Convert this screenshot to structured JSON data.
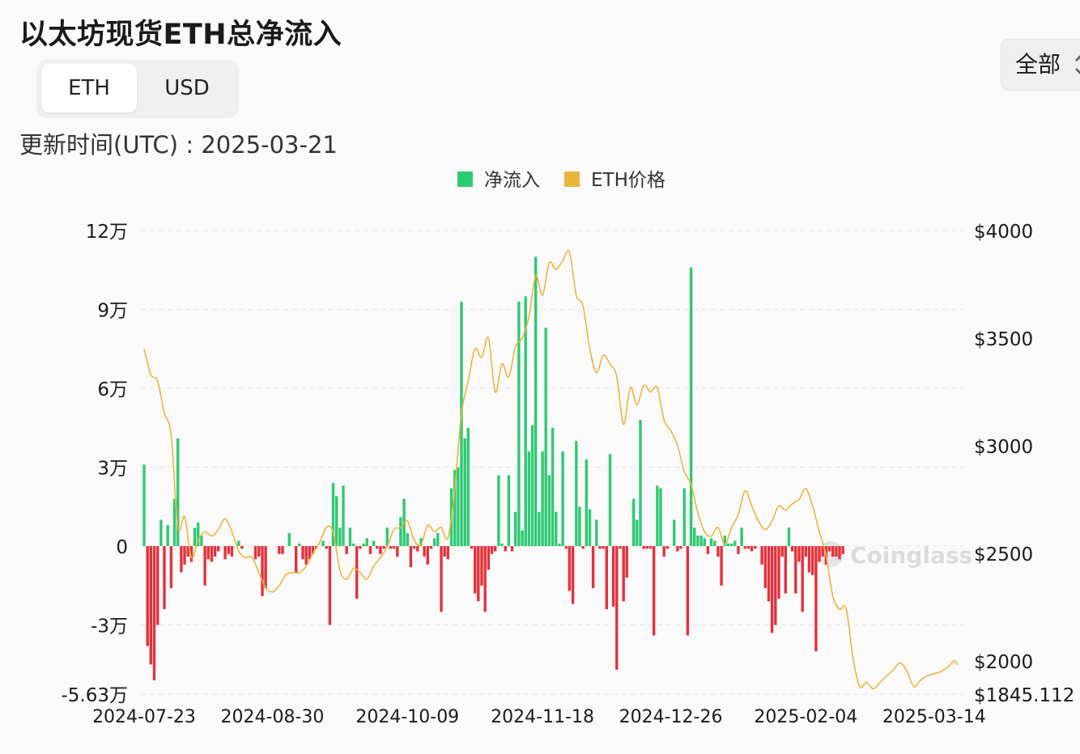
{
  "title": "以太坊现货ETH总净流入",
  "unit_toggle": {
    "options": [
      "ETH",
      "USD"
    ],
    "selected": "ETH"
  },
  "range_select": {
    "value": "全部",
    "chevron": "⌃⌄"
  },
  "updated": "更新时间(UTC) : 2025-03-21",
  "watermark": "Coinglass",
  "colors": {
    "inflow": "#2ec973",
    "outflow": "#e5313b",
    "price": "#ebb53c",
    "grid": "#e6e6e6"
  },
  "chart_data": {
    "type": "bar+line",
    "legend": [
      {
        "label": "净流入",
        "color": "#2ec973"
      },
      {
        "label": "ETH价格",
        "color": "#ebb53c"
      }
    ],
    "left_axis": {
      "ticks": [
        120000,
        90000,
        60000,
        30000,
        0,
        -30000,
        -56300
      ],
      "tick_labels": [
        "12万",
        "9万",
        "6万",
        "3万",
        "0",
        "-3万",
        "-5.63万"
      ],
      "range": [
        -56300,
        120000
      ]
    },
    "right_axis": {
      "ticks": [
        4000,
        3500,
        3000,
        2500,
        2000,
        1845.112
      ],
      "tick_labels": [
        "$4000",
        "$3500",
        "$3000",
        "$2500",
        "$2000",
        "$1845.112"
      ],
      "range": [
        1845.112,
        4000
      ]
    },
    "x_labels": [
      "2024-07-23",
      "2024-08-30",
      "2024-10-09",
      "2024-11-18",
      "2024-12-26",
      "2025-02-04",
      "2025-03-14"
    ],
    "x_label_indices": [
      0,
      38,
      78,
      118,
      156,
      196,
      234
    ],
    "num_days": 242,
    "net_flow": [
      [
        0,
        31000
      ],
      [
        1,
        -38000
      ],
      [
        2,
        -45000
      ],
      [
        3,
        -51000
      ],
      [
        4,
        -30000
      ],
      [
        5,
        10000
      ],
      [
        6,
        -24000
      ],
      [
        7,
        8000
      ],
      [
        8,
        -16000
      ],
      [
        9,
        18000
      ],
      [
        10,
        41000
      ],
      [
        11,
        -10000
      ],
      [
        12,
        -7000
      ],
      [
        13,
        -4000
      ],
      [
        14,
        -6000
      ],
      [
        15,
        7000
      ],
      [
        16,
        9000
      ],
      [
        17,
        4000
      ],
      [
        18,
        -15000
      ],
      [
        19,
        -5000
      ],
      [
        20,
        -6000
      ],
      [
        21,
        -4000
      ],
      [
        22,
        -2000
      ],
      [
        24,
        -5000
      ],
      [
        25,
        -3000
      ],
      [
        26,
        -4000
      ],
      [
        28,
        2000
      ],
      [
        29,
        -1000
      ],
      [
        33,
        -5000
      ],
      [
        34,
        -4000
      ],
      [
        35,
        -19000
      ],
      [
        36,
        -16000
      ],
      [
        40,
        -3000
      ],
      [
        41,
        -3000
      ],
      [
        43,
        5000
      ],
      [
        45,
        -10000
      ],
      [
        46,
        1000
      ],
      [
        47,
        -5000
      ],
      [
        48,
        -7000
      ],
      [
        49,
        -5000
      ],
      [
        50,
        -3000
      ],
      [
        51,
        -1000
      ],
      [
        53,
        2000
      ],
      [
        54,
        -1000
      ],
      [
        55,
        -30000
      ],
      [
        56,
        24000
      ],
      [
        57,
        19000
      ],
      [
        58,
        7000
      ],
      [
        59,
        23000
      ],
      [
        60,
        -3000
      ],
      [
        61,
        7000
      ],
      [
        62,
        1000
      ],
      [
        63,
        -20000
      ],
      [
        64,
        -1000
      ],
      [
        65,
        1000
      ],
      [
        66,
        3000
      ],
      [
        67,
        -3000
      ],
      [
        68,
        2000
      ],
      [
        69,
        -1000
      ],
      [
        70,
        -3000
      ],
      [
        71,
        -1000
      ],
      [
        72,
        7000
      ],
      [
        73,
        -1000
      ],
      [
        74,
        -1000
      ],
      [
        75,
        -4000
      ],
      [
        76,
        11000
      ],
      [
        77,
        18000
      ],
      [
        78,
        5000
      ],
      [
        79,
        -8000
      ],
      [
        80,
        -1000
      ],
      [
        81,
        -2000
      ],
      [
        82,
        3000
      ],
      [
        83,
        -4000
      ],
      [
        84,
        -7000
      ],
      [
        85,
        -1000
      ],
      [
        86,
        3000
      ],
      [
        87,
        5000
      ],
      [
        88,
        -25000
      ],
      [
        89,
        -4000
      ],
      [
        90,
        -5000
      ],
      [
        91,
        22000
      ],
      [
        92,
        29000
      ],
      [
        93,
        30000
      ],
      [
        94,
        93000
      ],
      [
        95,
        41000
      ],
      [
        96,
        45000
      ],
      [
        97,
        -1000
      ],
      [
        98,
        -18000
      ],
      [
        99,
        -21000
      ],
      [
        100,
        -15000
      ],
      [
        101,
        -25000
      ],
      [
        102,
        -9000
      ],
      [
        103,
        -3000
      ],
      [
        104,
        -2000
      ],
      [
        105,
        27000
      ],
      [
        106,
        1000
      ],
      [
        107,
        -2000
      ],
      [
        108,
        27000
      ],
      [
        109,
        -2000
      ],
      [
        110,
        13000
      ],
      [
        111,
        93000
      ],
      [
        112,
        6000
      ],
      [
        113,
        95000
      ],
      [
        114,
        36000
      ],
      [
        115,
        46000
      ],
      [
        116,
        110000
      ],
      [
        117,
        13000
      ],
      [
        118,
        36000
      ],
      [
        119,
        83000
      ],
      [
        120,
        27000
      ],
      [
        121,
        45000
      ],
      [
        122,
        13000
      ],
      [
        123,
        1000
      ],
      [
        124,
        36000
      ],
      [
        125,
        -1000
      ],
      [
        126,
        -17000
      ],
      [
        127,
        -22000
      ],
      [
        128,
        40000
      ],
      [
        129,
        15000
      ],
      [
        130,
        -1000
      ],
      [
        131,
        33000
      ],
      [
        132,
        14000
      ],
      [
        133,
        -16000
      ],
      [
        134,
        10000
      ],
      [
        135,
        -1000
      ],
      [
        136,
        -1000
      ],
      [
        137,
        -24000
      ],
      [
        138,
        35000
      ],
      [
        139,
        -23000
      ],
      [
        140,
        -47000
      ],
      [
        141,
        -1000
      ],
      [
        142,
        -21000
      ],
      [
        143,
        -12000
      ],
      [
        145,
        18000
      ],
      [
        146,
        10000
      ],
      [
        147,
        48000
      ],
      [
        148,
        -1000
      ],
      [
        149,
        -1000
      ],
      [
        150,
        -1000
      ],
      [
        151,
        -34000
      ],
      [
        152,
        23000
      ],
      [
        153,
        22000
      ],
      [
        154,
        -4000
      ],
      [
        155,
        -1000
      ],
      [
        157,
        10000
      ],
      [
        158,
        -2000
      ],
      [
        159,
        -1000
      ],
      [
        160,
        22000
      ],
      [
        161,
        -34000
      ],
      [
        162,
        106000
      ],
      [
        163,
        7000
      ],
      [
        164,
        4000
      ],
      [
        165,
        4000
      ],
      [
        166,
        3000
      ],
      [
        167,
        -3000
      ],
      [
        168,
        3000
      ],
      [
        169,
        2000
      ],
      [
        170,
        -4000
      ],
      [
        171,
        -15000
      ],
      [
        172,
        4000
      ],
      [
        173,
        1000
      ],
      [
        174,
        1000
      ],
      [
        175,
        2000
      ],
      [
        176,
        -3000
      ],
      [
        177,
        7000
      ],
      [
        178,
        -1000
      ],
      [
        179,
        -1000
      ],
      [
        180,
        -2000
      ],
      [
        181,
        -1000
      ],
      [
        183,
        -7000
      ],
      [
        184,
        -16000
      ],
      [
        185,
        -21000
      ],
      [
        186,
        -33000
      ],
      [
        187,
        -30000
      ],
      [
        188,
        -20000
      ],
      [
        189,
        -4000
      ],
      [
        190,
        -18000
      ],
      [
        191,
        7000
      ],
      [
        192,
        -2000
      ],
      [
        193,
        -18000
      ],
      [
        194,
        -6000
      ],
      [
        195,
        -25000
      ],
      [
        196,
        -4000
      ],
      [
        197,
        -10000
      ],
      [
        198,
        -11000
      ],
      [
        199,
        -40000
      ],
      [
        200,
        -6000
      ],
      [
        201,
        -4000
      ],
      [
        202,
        -7000
      ],
      [
        203,
        -2000
      ],
      [
        204,
        -4000
      ],
      [
        205,
        -4000
      ],
      [
        206,
        -5000
      ],
      [
        207,
        -3000
      ]
    ],
    "price_points": [
      [
        0,
        3450
      ],
      [
        2,
        3330
      ],
      [
        4,
        3300
      ],
      [
        6,
        3150
      ],
      [
        8,
        3050
      ],
      [
        10,
        2620
      ],
      [
        12,
        2670
      ],
      [
        14,
        2480
      ],
      [
        16,
        2560
      ],
      [
        18,
        2600
      ],
      [
        20,
        2580
      ],
      [
        22,
        2610
      ],
      [
        24,
        2660
      ],
      [
        26,
        2600
      ],
      [
        28,
        2510
      ],
      [
        30,
        2480
      ],
      [
        32,
        2480
      ],
      [
        34,
        2410
      ],
      [
        36,
        2340
      ],
      [
        38,
        2320
      ],
      [
        40,
        2350
      ],
      [
        42,
        2400
      ],
      [
        44,
        2410
      ],
      [
        46,
        2410
      ],
      [
        48,
        2440
      ],
      [
        50,
        2500
      ],
      [
        52,
        2550
      ],
      [
        54,
        2620
      ],
      [
        56,
        2600
      ],
      [
        58,
        2420
      ],
      [
        60,
        2380
      ],
      [
        62,
        2430
      ],
      [
        64,
        2410
      ],
      [
        66,
        2380
      ],
      [
        68,
        2440
      ],
      [
        70,
        2480
      ],
      [
        72,
        2530
      ],
      [
        74,
        2610
      ],
      [
        76,
        2620
      ],
      [
        78,
        2650
      ],
      [
        80,
        2560
      ],
      [
        82,
        2540
      ],
      [
        84,
        2630
      ],
      [
        86,
        2600
      ],
      [
        88,
        2620
      ],
      [
        90,
        2570
      ],
      [
        92,
        2800
      ],
      [
        94,
        3150
      ],
      [
        96,
        3300
      ],
      [
        98,
        3450
      ],
      [
        100,
        3410
      ],
      [
        102,
        3500
      ],
      [
        104,
        3250
      ],
      [
        106,
        3380
      ],
      [
        108,
        3320
      ],
      [
        110,
        3460
      ],
      [
        112,
        3500
      ],
      [
        114,
        3600
      ],
      [
        116,
        3790
      ],
      [
        118,
        3700
      ],
      [
        120,
        3850
      ],
      [
        122,
        3820
      ],
      [
        124,
        3860
      ],
      [
        126,
        3900
      ],
      [
        128,
        3700
      ],
      [
        130,
        3650
      ],
      [
        132,
        3450
      ],
      [
        134,
        3340
      ],
      [
        136,
        3420
      ],
      [
        138,
        3380
      ],
      [
        140,
        3320
      ],
      [
        142,
        3100
      ],
      [
        144,
        3270
      ],
      [
        146,
        3190
      ],
      [
        148,
        3280
      ],
      [
        150,
        3250
      ],
      [
        152,
        3270
      ],
      [
        154,
        3120
      ],
      [
        156,
        3070
      ],
      [
        158,
        3000
      ],
      [
        160,
        2880
      ],
      [
        162,
        2820
      ],
      [
        164,
        2690
      ],
      [
        166,
        2600
      ],
      [
        168,
        2580
      ],
      [
        170,
        2620
      ],
      [
        172,
        2540
      ],
      [
        174,
        2620
      ],
      [
        176,
        2680
      ],
      [
        178,
        2790
      ],
      [
        180,
        2720
      ],
      [
        182,
        2650
      ],
      [
        184,
        2610
      ],
      [
        186,
        2650
      ],
      [
        188,
        2720
      ],
      [
        190,
        2700
      ],
      [
        192,
        2730
      ],
      [
        194,
        2750
      ],
      [
        196,
        2800
      ],
      [
        198,
        2720
      ],
      [
        200,
        2600
      ],
      [
        202,
        2490
      ],
      [
        204,
        2300
      ],
      [
        206,
        2240
      ],
      [
        208,
        2240
      ],
      [
        210,
        2010
      ],
      [
        212,
        1880
      ],
      [
        214,
        1900
      ],
      [
        216,
        1870
      ],
      [
        218,
        1900
      ],
      [
        220,
        1930
      ],
      [
        222,
        1960
      ],
      [
        224,
        1990
      ],
      [
        226,
        1950
      ],
      [
        228,
        1880
      ],
      [
        230,
        1910
      ],
      [
        232,
        1930
      ],
      [
        234,
        1940
      ],
      [
        236,
        1950
      ],
      [
        238,
        1970
      ],
      [
        240,
        2000
      ],
      [
        241,
        1980
      ]
    ]
  }
}
